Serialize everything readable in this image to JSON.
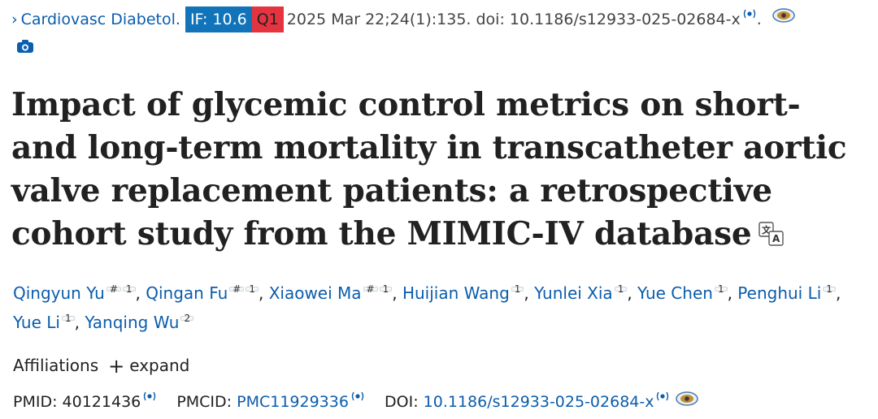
{
  "citation": {
    "chevron": "›",
    "journal": "Cardiovasc Diabetol.",
    "impact_factor": "IF: 10.6",
    "quartile": "Q1",
    "date_volume": "2025 Mar 22;24(1):135.",
    "doi_text": "doi: 10.1186/s12933-025-02684-x",
    "end_period": "."
  },
  "article": {
    "title": "Impact of glycemic control metrics on short- and long-term mortality in transcatheter aortic valve replacement patients: a retrospective cohort study from the MIMIC-IV database"
  },
  "authors": [
    {
      "name": "Qingyun Yu",
      "marks": [
        "#",
        "1"
      ]
    },
    {
      "name": "Qingan Fu",
      "marks": [
        "#",
        "1"
      ]
    },
    {
      "name": "Xiaowei Ma",
      "marks": [
        "#",
        "1"
      ]
    },
    {
      "name": "Huijian Wang",
      "marks": [
        "1"
      ]
    },
    {
      "name": "Yunlei Xia",
      "marks": [
        "1"
      ]
    },
    {
      "name": "Yue Chen",
      "marks": [
        "1"
      ]
    },
    {
      "name": "Penghui Li",
      "marks": [
        "1"
      ]
    },
    {
      "name": "Yue Li",
      "marks": [
        "1"
      ]
    },
    {
      "name": "Yanqing Wu",
      "marks": [
        "2"
      ]
    }
  ],
  "affiliations": {
    "label": "Affiliations",
    "expand_label": "expand"
  },
  "identifiers": {
    "pmid_label": "PMID:",
    "pmid": "40121436",
    "pmcid_label": "PMCID:",
    "pmcid": "PMC11929336",
    "doi_label": "DOI:",
    "doi": "10.1186/s12933-025-02684-x"
  },
  "icons": [
    "chevron-right-icon",
    "radio-icon",
    "eye-icon",
    "camera-icon",
    "translate-icon",
    "plus-icon"
  ],
  "colors": {
    "link": "#0b5dad",
    "if_badge": "#1173b9",
    "q1_badge": "#e5343f"
  }
}
